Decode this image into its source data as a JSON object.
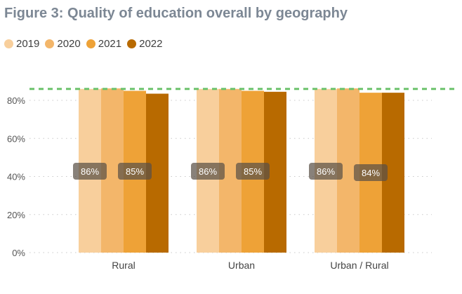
{
  "chart_data": {
    "type": "bar",
    "title": "Figure 3: Quality of education overall by geography",
    "categories": [
      "Rural",
      "Urban",
      "Urban / Rural"
    ],
    "series": [
      {
        "name": "2019",
        "color": "#f8cf9c",
        "values": [
          86,
          86,
          86
        ]
      },
      {
        "name": "2020",
        "color": "#f3b66a",
        "values": [
          86.3,
          86,
          86.3
        ]
      },
      {
        "name": "2021",
        "color": "#eea237",
        "values": [
          85,
          85,
          84
        ]
      },
      {
        "name": "2022",
        "color": "#b86a00",
        "values": [
          83.5,
          84.5,
          84
        ]
      }
    ],
    "data_labels": [
      {
        "category": 0,
        "series": 0,
        "text": "86%"
      },
      {
        "category": 0,
        "series": 2,
        "text": "85%"
      },
      {
        "category": 1,
        "series": 0,
        "text": "86%"
      },
      {
        "category": 1,
        "series": 2,
        "text": "85%"
      },
      {
        "category": 2,
        "series": 0,
        "text": "86%"
      },
      {
        "category": 2,
        "series": 2,
        "text": "84%"
      }
    ],
    "y_ticks": [
      {
        "value": 0,
        "label": "0%"
      },
      {
        "value": 20,
        "label": "20%"
      },
      {
        "value": 40,
        "label": "40%"
      },
      {
        "value": 60,
        "label": "60%"
      },
      {
        "value": 80,
        "label": "80%"
      }
    ],
    "ylim": [
      0,
      80
    ],
    "reference_line": {
      "value": 86,
      "color": "#6cc26c",
      "style": "dashed"
    },
    "grid": "horizontal-dotted",
    "legend_position": "top-left",
    "xlabel": "",
    "ylabel": ""
  }
}
